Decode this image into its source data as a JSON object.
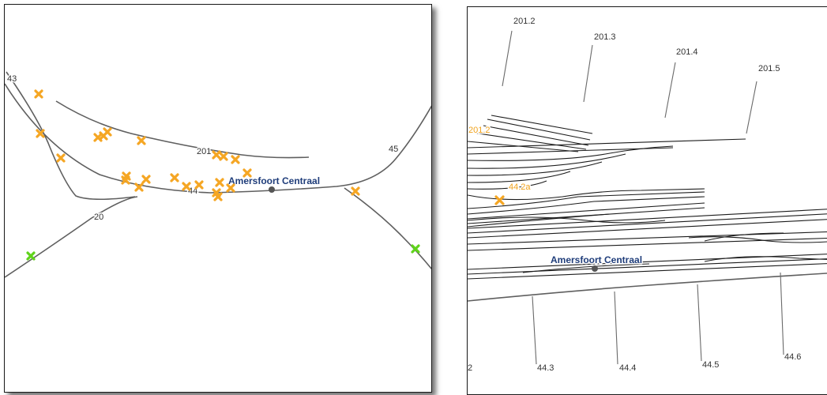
{
  "left_map": {
    "station_label": "Amersfoort Centraal",
    "route_labels": {
      "r43": "43",
      "r201": "201",
      "r44": "44",
      "r45": "45",
      "r20": "20"
    },
    "marker_colors": {
      "orange": "#f5a623",
      "green": "#5fd31a"
    },
    "marker_icon": "x-mark-icon"
  },
  "right_map": {
    "station_label": "Amersfoort Centraal",
    "top_km_labels": {
      "k2012": "201.2",
      "k2013": "201.3",
      "k2014": "201.4",
      "k2015": "201.5"
    },
    "bottom_km_labels": {
      "k443": "44.3",
      "k444": "44.4",
      "k445": "44.5",
      "k446": "44.6",
      "edge": "2"
    },
    "orange_labels": {
      "o2012": "201.2",
      "o442a": "44.2a"
    }
  }
}
